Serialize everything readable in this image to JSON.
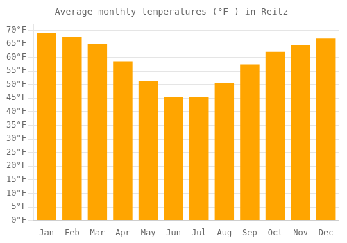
{
  "chart_data": {
    "type": "bar",
    "title": "Average monthly temperatures (°F ) in Reitz",
    "categories": [
      "Jan",
      "Feb",
      "Mar",
      "Apr",
      "May",
      "Jun",
      "Jul",
      "Aug",
      "Sep",
      "Oct",
      "Nov",
      "Dec"
    ],
    "values": [
      69,
      67.5,
      65,
      58.5,
      51.5,
      45.5,
      45.5,
      50.5,
      57.5,
      62,
      64.5,
      67
    ],
    "color": "#FFA500",
    "ylim": [
      0,
      72
    ],
    "yticks": [
      {
        "value": 0,
        "label": "0°F"
      },
      {
        "value": 5,
        "label": "5°F"
      },
      {
        "value": 10,
        "label": "10°F"
      },
      {
        "value": 15,
        "label": "15°F"
      },
      {
        "value": 20,
        "label": "20°F"
      },
      {
        "value": 25,
        "label": "25°F"
      },
      {
        "value": 30,
        "label": "30°F"
      },
      {
        "value": 35,
        "label": "35°F"
      },
      {
        "value": 40,
        "label": "40°F"
      },
      {
        "value": 45,
        "label": "45°F"
      },
      {
        "value": 50,
        "label": "50°F"
      },
      {
        "value": 55,
        "label": "55°F"
      },
      {
        "value": 60,
        "label": "60°F"
      },
      {
        "value": 65,
        "label": "65°F"
      },
      {
        "value": 70,
        "label": "70°F"
      }
    ],
    "grid": true
  }
}
